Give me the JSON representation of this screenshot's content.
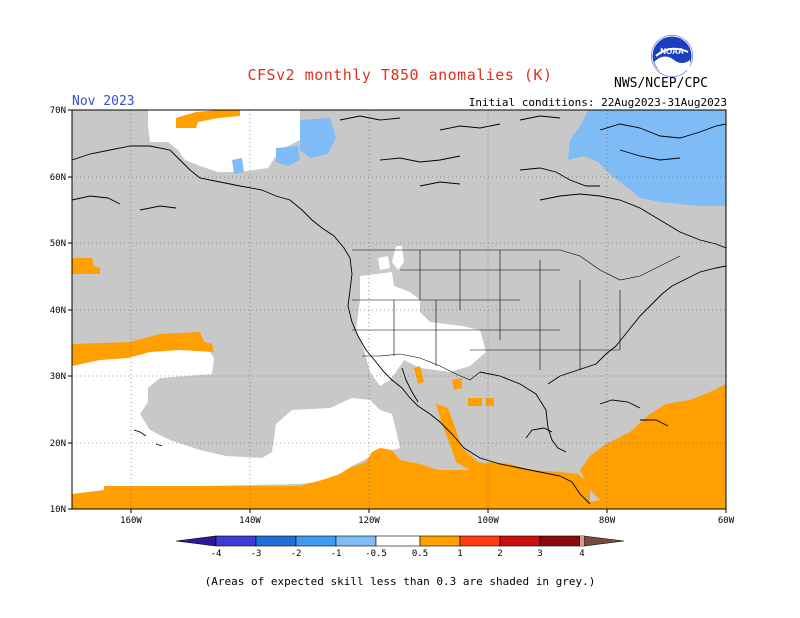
{
  "title": "CFSv2 monthly T850 anomalies (K)",
  "period": "Nov 2023",
  "initial_conditions": "Initial conditions: 22Aug2023-31Aug2023",
  "agency": "NWS/NCEP/CPC",
  "logo_text": "NOAA",
  "lat_labels": [
    "70N",
    "60N",
    "50N",
    "40N",
    "30N",
    "20N",
    "10N"
  ],
  "lon_labels": [
    "160W",
    "140W",
    "120W",
    "100W",
    "80W",
    "60W"
  ],
  "colorbar": {
    "labels": [
      "-4",
      "-3",
      "-2",
      "-1",
      "-0.5",
      "0.5",
      "1",
      "2",
      "3",
      "4"
    ],
    "colors": [
      "#2a1a9a",
      "#3f3bd4",
      "#1f6fd6",
      "#3d9bf0",
      "#7fbcf5",
      "#ffffff",
      "#ff9f00",
      "#ff3b10",
      "#c81010",
      "#8a0a0a",
      "#c9a096",
      "#7a4a40"
    ]
  },
  "footer": "(Areas of expected skill less than 0.3 are shaded in grey.)",
  "colors": {
    "grey_mask": "#c8c8c8",
    "warm": "#ff9f00",
    "cool": "#7fbcf5"
  }
}
